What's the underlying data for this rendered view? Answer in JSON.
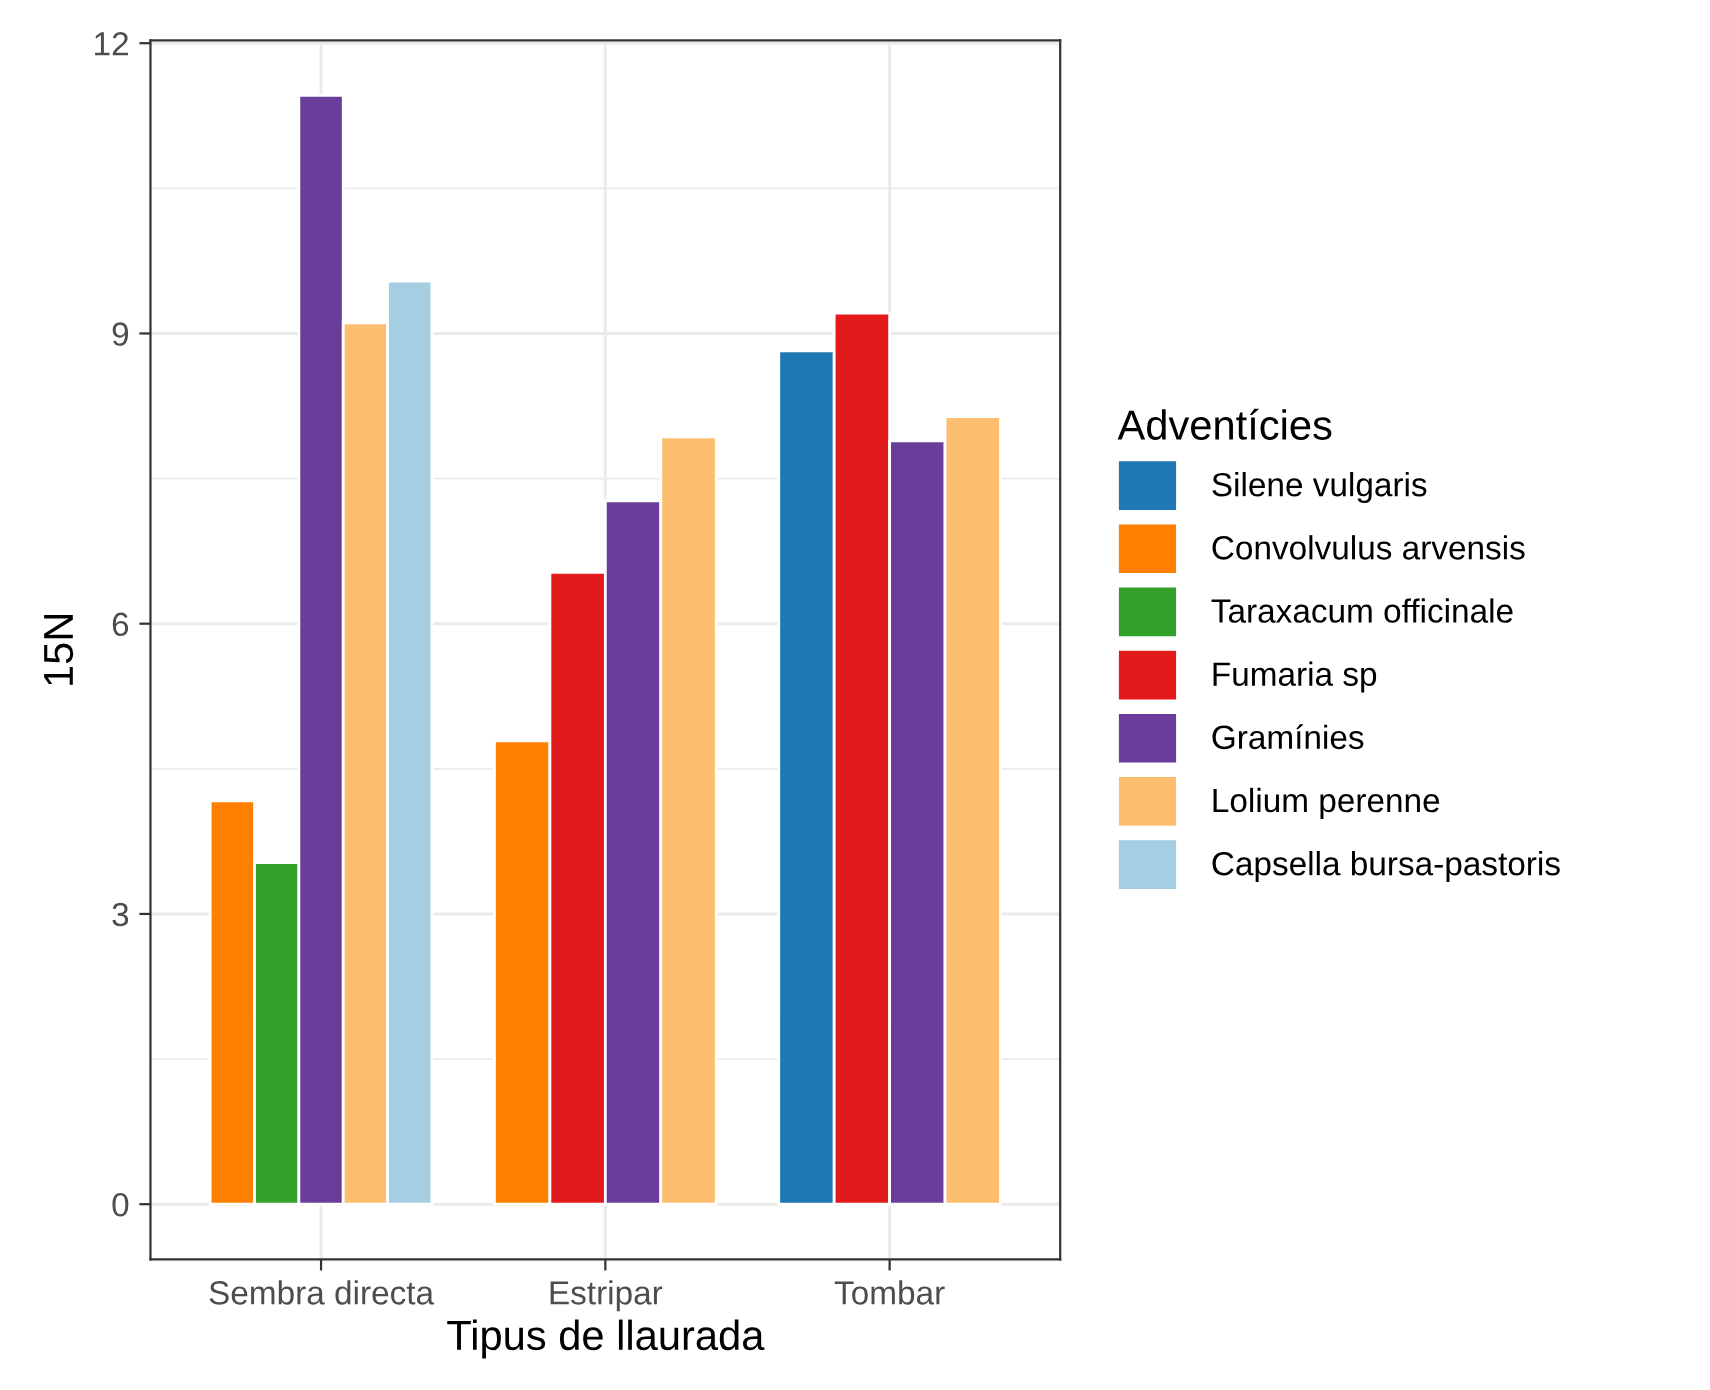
{
  "chart_data": {
    "type": "bar",
    "xlabel": "Tipus de llaurada",
    "ylabel": "15N",
    "legend_title": "Adventícies",
    "categories": [
      "Sembra directa",
      "Estripar",
      "Tombar"
    ],
    "series": [
      {
        "name": "Silene vulgaris",
        "color": "#1f78b4",
        "values": [
          null,
          null,
          8.82
        ]
      },
      {
        "name": "Convolvulus arvensis",
        "color": "#ff7f00",
        "values": [
          4.17,
          4.79,
          null
        ]
      },
      {
        "name": "Taraxacum officinale",
        "color": "#33a02c",
        "values": [
          3.53,
          null,
          null
        ]
      },
      {
        "name": "Fumaria sp",
        "color": "#e31a1c",
        "values": [
          null,
          6.53,
          9.21
        ]
      },
      {
        "name": "Gramínies",
        "color": "#6a3d9a",
        "values": [
          11.46,
          7.27,
          7.89
        ]
      },
      {
        "name": "Lolium perenne",
        "color": "#fdbf6f",
        "values": [
          9.11,
          7.93,
          8.14
        ]
      },
      {
        "name": "Capsella bursa-pastoris",
        "color": "#a6cee3",
        "values": [
          9.54,
          null,
          null
        ]
      }
    ],
    "ylim": [
      -0.57,
      12.03
    ],
    "yticks": [
      0,
      3,
      6,
      9,
      12
    ],
    "grid": true,
    "legend": "right"
  }
}
